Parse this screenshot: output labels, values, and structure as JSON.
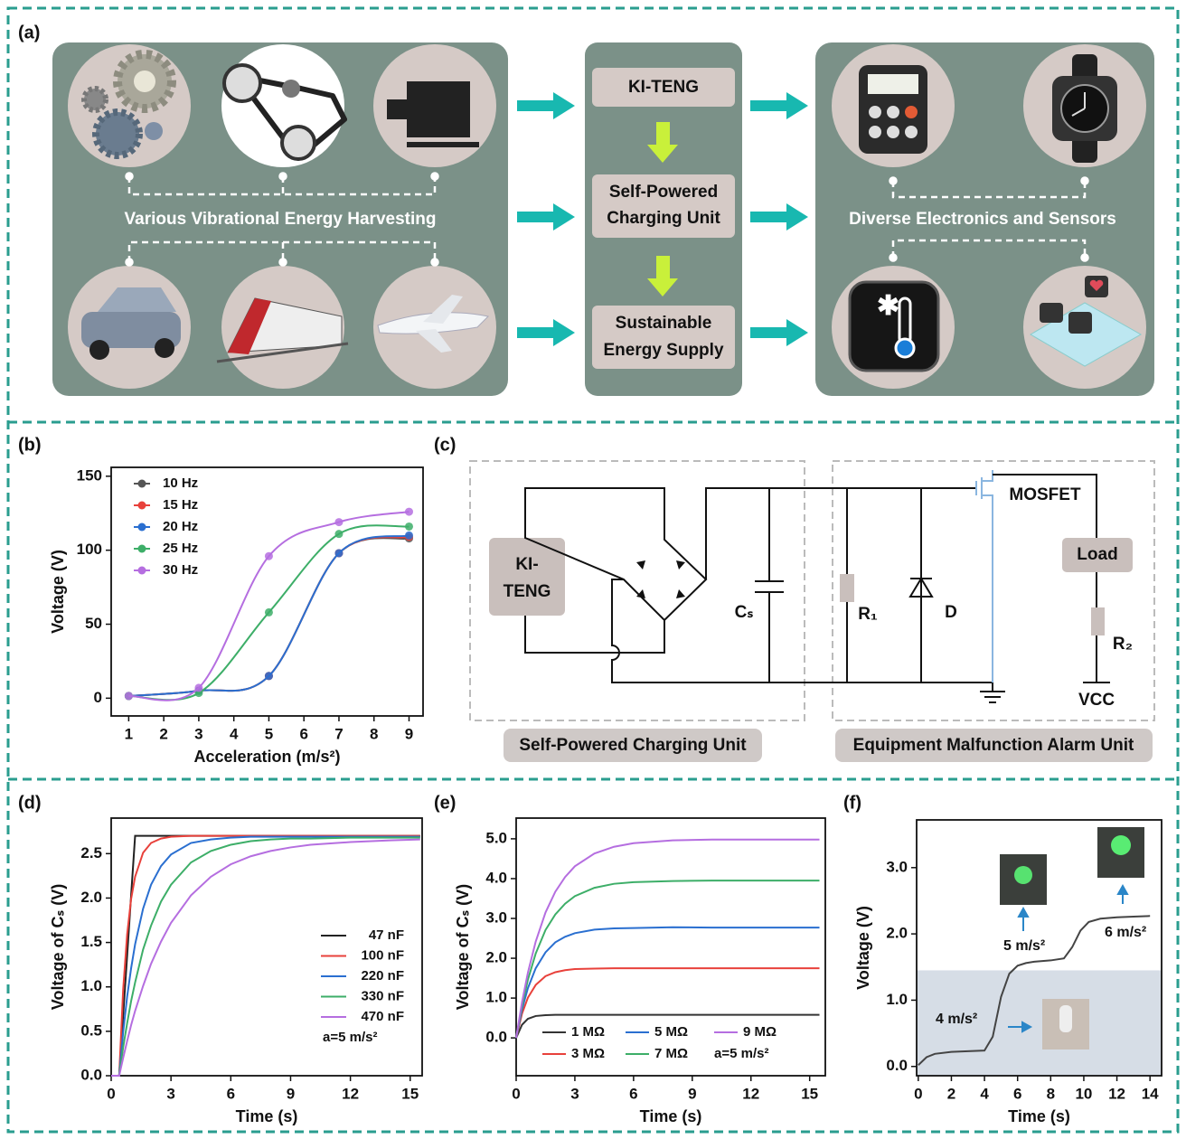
{
  "panel_labels": [
    "(a)",
    "(b)",
    "(c)",
    "(d)",
    "(e)",
    "(f)"
  ],
  "diagram_a": {
    "sources_label": "Various Vibrational Energy Harvesting",
    "flow": [
      [
        "KI-TENG"
      ],
      [
        "Self-Powered",
        "Charging Unit"
      ],
      [
        "Sustainable",
        "Energy Supply"
      ]
    ],
    "outputs_label": "Diverse Electronics and Sensors"
  },
  "circuit_c": {
    "teng": [
      "KI-",
      "TENG"
    ],
    "capacitor": "Cₛ",
    "r1": "R₁",
    "diode": "D",
    "mosfet": "MOSFET",
    "load": "Load",
    "r2": "R₂",
    "vcc": "VCC",
    "units": [
      "Self-Powered Charging Unit",
      "Equipment Malfunction Alarm Unit"
    ]
  },
  "chart_data": [
    {
      "type": "line",
      "smooth": true,
      "markers": true,
      "xlabel": "Acceleration (m/s²)",
      "ylabel": "Voltage (V)",
      "x": [
        1,
        3,
        5,
        7,
        9
      ],
      "xlim": [
        0.5,
        9.4
      ],
      "xticks": [
        1,
        2,
        3,
        4,
        5,
        6,
        7,
        8,
        9
      ],
      "ylim": [
        -12,
        156
      ],
      "yticks": [
        0,
        50,
        100,
        150
      ],
      "series": [
        {
          "name": "10 Hz",
          "color": "#555555",
          "values": [
            1.5,
            5,
            15,
            98,
            108
          ]
        },
        {
          "name": "15 Hz",
          "color": "#e8413b",
          "values": [
            1.5,
            5,
            15,
            98,
            109
          ]
        },
        {
          "name": "20 Hz",
          "color": "#2a6fd0",
          "values": [
            1.5,
            5,
            15,
            98,
            110
          ]
        },
        {
          "name": "25 Hz",
          "color": "#3dae68",
          "values": [
            1.5,
            3.5,
            58,
            111,
            116
          ]
        },
        {
          "name": "30 Hz",
          "color": "#b56ee0",
          "values": [
            1.5,
            7,
            96,
            119,
            126
          ]
        }
      ]
    },
    {
      "type": "line",
      "xlabel": "Time (s)",
      "ylabel": "Voltage of Cₛ (V)",
      "annotation": "a=5 m/s²",
      "x": [
        0,
        0.4,
        0.6,
        0.8,
        1.0,
        1.2,
        1.6,
        2,
        2.5,
        3,
        4,
        5,
        6,
        7,
        8,
        9,
        10,
        12,
        14,
        15.5
      ],
      "xlim": [
        0,
        15.6
      ],
      "xticks": [
        0,
        3,
        6,
        9,
        12,
        15
      ],
      "ylim": [
        0,
        2.9
      ],
      "yticks": [
        {
          "value": 0,
          "label": "0.0"
        },
        0.5,
        {
          "value": 1,
          "label": "1.0"
        },
        1.5,
        {
          "value": 2,
          "label": "2.0"
        },
        2.5
      ],
      "series": [
        {
          "name": "47 nF",
          "color": "#222222",
          "values": [
            0,
            0,
            0.68,
            1.35,
            2.03,
            2.7,
            2.7,
            2.7,
            2.7,
            2.7,
            2.7,
            2.7,
            2.7,
            2.7,
            2.7,
            2.7,
            2.7,
            2.7,
            2.7,
            2.7
          ]
        },
        {
          "name": "100 nF",
          "color": "#e8413b",
          "values": [
            0,
            0,
            0.97,
            1.59,
            1.99,
            2.24,
            2.51,
            2.62,
            2.67,
            2.69,
            2.7,
            2.7,
            2.7,
            2.7,
            2.7,
            2.7,
            2.7,
            2.7,
            2.7,
            2.7
          ]
        },
        {
          "name": "220 nF",
          "color": "#2a6fd0",
          "values": [
            0,
            0,
            0.49,
            0.89,
            1.21,
            1.48,
            1.88,
            2.15,
            2.36,
            2.49,
            2.62,
            2.66,
            2.68,
            2.69,
            2.69,
            2.69,
            2.69,
            2.69,
            2.69,
            2.69
          ]
        },
        {
          "name": "330 nF",
          "color": "#3dae68",
          "values": [
            0,
            0,
            0.32,
            0.59,
            0.84,
            1.05,
            1.42,
            1.69,
            1.96,
            2.15,
            2.4,
            2.53,
            2.6,
            2.64,
            2.66,
            2.67,
            2.67,
            2.68,
            2.68,
            2.68
          ]
        },
        {
          "name": "470 nF",
          "color": "#b56ee0",
          "values": [
            0,
            0,
            0.2,
            0.39,
            0.57,
            0.73,
            1.01,
            1.26,
            1.51,
            1.72,
            2.03,
            2.24,
            2.38,
            2.47,
            2.53,
            2.57,
            2.6,
            2.63,
            2.65,
            2.66
          ]
        }
      ]
    },
    {
      "type": "line",
      "xlabel": "Time (s)",
      "ylabel": "Voltage of Cₛ (V)",
      "annotation": "a=5 m/s²",
      "x": [
        0,
        0.3,
        0.6,
        1,
        1.5,
        2,
        2.5,
        3,
        4,
        5,
        6,
        8,
        10,
        12,
        14,
        15.5
      ],
      "xlim": [
        0,
        15.8
      ],
      "xticks": [
        0,
        3,
        6,
        9,
        12,
        15
      ],
      "ylim": [
        -0.95,
        5.52
      ],
      "yticks": [
        {
          "value": 0,
          "label": "0.0"
        },
        {
          "value": 1,
          "label": "1.0"
        },
        {
          "value": 2,
          "label": "2.0"
        },
        {
          "value": 3,
          "label": "3.0"
        },
        {
          "value": 4,
          "label": "4.0"
        },
        {
          "value": 5,
          "label": "5.0"
        }
      ],
      "series": [
        {
          "name": "1 MΩ",
          "color": "#333333",
          "values": [
            0,
            0.33,
            0.48,
            0.55,
            0.57,
            0.58,
            0.58,
            0.58,
            0.58,
            0.58,
            0.58,
            0.58,
            0.58,
            0.58,
            0.58,
            0.58
          ]
        },
        {
          "name": "3 MΩ",
          "color": "#e8413b",
          "values": [
            0,
            0.61,
            1.01,
            1.33,
            1.55,
            1.65,
            1.7,
            1.73,
            1.74,
            1.75,
            1.75,
            1.75,
            1.75,
            1.75,
            1.75,
            1.75
          ]
        },
        {
          "name": "5 MΩ",
          "color": "#2a6fd0",
          "values": [
            0,
            0.72,
            1.25,
            1.75,
            2.15,
            2.4,
            2.54,
            2.63,
            2.72,
            2.75,
            2.76,
            2.78,
            2.77,
            2.77,
            2.77,
            2.77
          ]
        },
        {
          "name": "7 MΩ",
          "color": "#3dae68",
          "values": [
            0,
            0.81,
            1.46,
            2.12,
            2.71,
            3.1,
            3.37,
            3.56,
            3.77,
            3.87,
            3.91,
            3.94,
            3.95,
            3.95,
            3.95,
            3.95
          ]
        },
        {
          "name": "9 MΩ",
          "color": "#b56ee0",
          "values": [
            0,
            0.9,
            1.64,
            2.42,
            3.15,
            3.67,
            4.04,
            4.31,
            4.63,
            4.8,
            4.89,
            4.96,
            4.98,
            4.98,
            4.98,
            4.98
          ]
        }
      ]
    },
    {
      "type": "line",
      "xlabel": "Time (s)",
      "ylabel": "Voltage (V)",
      "annotations": [
        "4 m/s²",
        "5 m/s²",
        "6 m/s²"
      ],
      "x": [
        0,
        0.5,
        1,
        2,
        3,
        4,
        4.5,
        5,
        5.5,
        6,
        6.5,
        7,
        8,
        8.8,
        9.3,
        9.8,
        10.3,
        11,
        12,
        13,
        14
      ],
      "values": [
        0.02,
        0.14,
        0.19,
        0.22,
        0.23,
        0.24,
        0.45,
        1.05,
        1.4,
        1.52,
        1.56,
        1.58,
        1.6,
        1.63,
        1.8,
        2.05,
        2.18,
        2.23,
        2.25,
        2.26,
        2.27
      ],
      "color": "#444444",
      "shaded_below": 1.45,
      "shade_color": "#d6dde6",
      "xlim": [
        -0.1,
        14.7
      ],
      "xticks": [
        0,
        2,
        4,
        6,
        8,
        10,
        12,
        14
      ],
      "ylim": [
        -0.14,
        3.72
      ],
      "yticks": [
        {
          "value": 0,
          "label": "0.0"
        },
        {
          "value": 1,
          "label": "1.0"
        },
        {
          "value": 2,
          "label": "2.0"
        },
        {
          "value": 3,
          "label": "3.0"
        }
      ]
    }
  ]
}
